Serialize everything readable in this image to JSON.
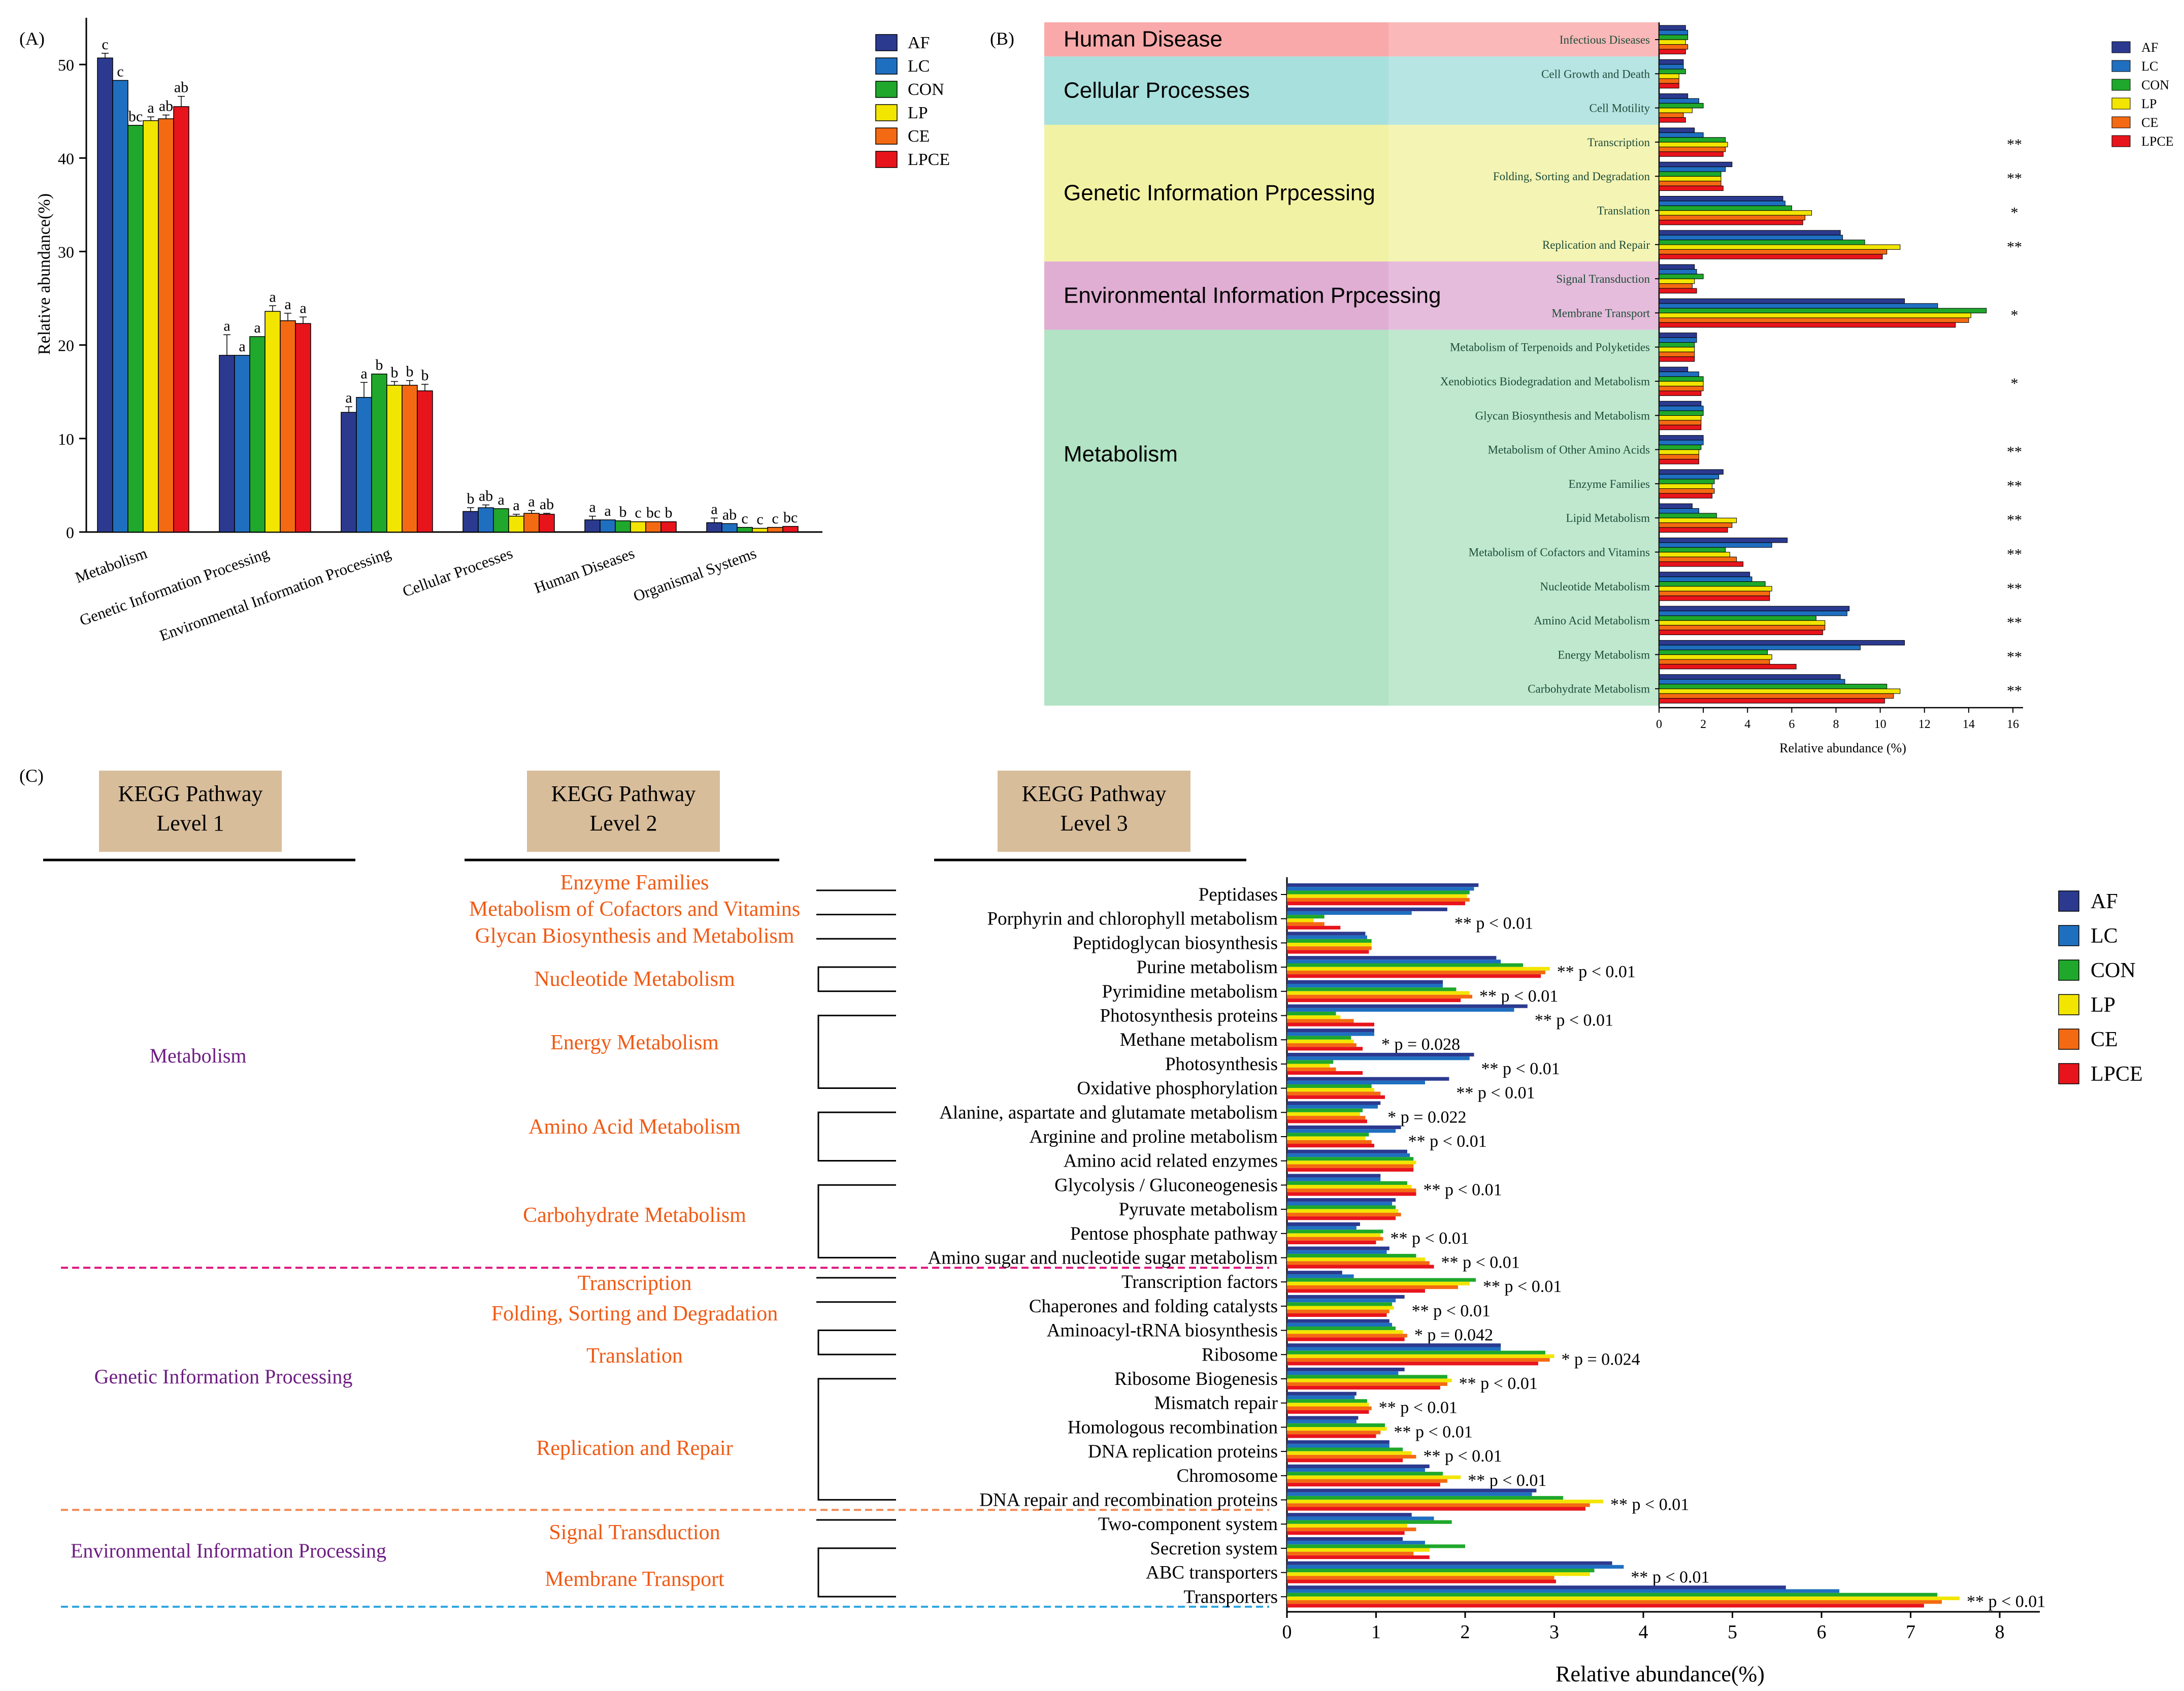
{
  "colors": {
    "AF": "#2b3a8f",
    "LC": "#1f6fc0",
    "CON": "#1fa82b",
    "LP": "#f2e500",
    "CE": "#f46a12",
    "LPCE": "#e8141c"
  },
  "legend": [
    "AF",
    "LC",
    "CON",
    "LP",
    "CE",
    "LPCE"
  ],
  "chart_data": [
    {
      "type": "bar",
      "panel": "(A)",
      "ylabel": "Relative abundance(%)",
      "ylim": [
        0,
        55
      ],
      "yticks": [
        0,
        10,
        20,
        30,
        40,
        50
      ],
      "categories": [
        "Metabolism",
        "Genetic Information Processing",
        "Environmental Information Processing",
        "Cellular Processes",
        "Human Diseases",
        "Organismal Systems"
      ],
      "series": [
        {
          "name": "AF",
          "values": [
            50.7,
            18.9,
            12.8,
            2.2,
            1.3,
            1.0
          ]
        },
        {
          "name": "LC",
          "values": [
            48.3,
            18.9,
            14.4,
            2.6,
            1.3,
            0.9
          ]
        },
        {
          "name": "CON",
          "values": [
            43.5,
            20.9,
            16.9,
            2.5,
            1.2,
            0.5
          ]
        },
        {
          "name": "LP",
          "values": [
            44.0,
            23.6,
            15.7,
            1.7,
            1.1,
            0.4
          ]
        },
        {
          "name": "CE",
          "values": [
            44.2,
            22.6,
            15.7,
            2.0,
            1.1,
            0.5
          ]
        },
        {
          "name": "LPCE",
          "values": [
            45.5,
            22.3,
            15.1,
            1.9,
            1.1,
            0.6
          ]
        }
      ],
      "errors": [
        [
          0.5,
          2.2,
          0.6,
          0.4,
          0.4,
          0.5
        ],
        [
          0,
          0,
          1.6,
          0.3,
          0,
          0
        ],
        [
          0,
          0,
          0,
          0,
          0,
          0
        ],
        [
          0.4,
          0.6,
          0.4,
          0.2,
          0,
          0
        ],
        [
          0.4,
          0.8,
          0.5,
          0.3,
          0,
          0
        ],
        [
          1.1,
          0.7,
          0.7,
          0.1,
          0,
          0
        ]
      ],
      "letters": [
        [
          "c",
          "c",
          "bc",
          "a",
          "ab",
          "ab"
        ],
        [
          "a",
          "a",
          "a",
          "a",
          "a",
          "a"
        ],
        [
          "a",
          "a",
          "b",
          "b",
          "b",
          "b"
        ],
        [
          "b",
          "ab",
          "a",
          "a",
          "a",
          "ab"
        ],
        [
          "a",
          "a",
          "b",
          "c",
          "bc",
          "b"
        ],
        [
          "a",
          "ab",
          "c",
          "c",
          "c",
          "bc"
        ]
      ]
    },
    {
      "type": "bar",
      "orientation": "horizontal",
      "panel": "(B)",
      "xlabel": "Relative abundance (%)",
      "xlim": [
        0,
        16
      ],
      "xticks": [
        0,
        2,
        4,
        6,
        8,
        10,
        12,
        14,
        16
      ],
      "groups": [
        {
          "name": "Human Disease",
          "color": "#f9a9a9",
          "rows": 1
        },
        {
          "name": "Cellular Processes",
          "color": "#a8e0dd",
          "rows": 2
        },
        {
          "name": "Genetic Information Prpcessing",
          "color": "#f2f2a4",
          "rows": 4
        },
        {
          "name": "Environmental Information Prpcessing",
          "color": "#e0aed3",
          "rows": 2
        },
        {
          "name": "Metabolism",
          "color": "#b1e3c4",
          "rows": 11
        }
      ],
      "categories": [
        "Infectious Diseases",
        "Cell Growth and Death",
        "Cell Motility",
        "Transcription",
        "Folding, Sorting and Degradation",
        "Translation",
        "Replication and Repair",
        "Signal Transduction",
        "Membrane Transport",
        "Metabolism of Terpenoids and Polyketides",
        "Xenobiotics Biodegradation and Metabolism",
        "Glycan Biosynthesis and Metabolism",
        "Metabolism of Other Amino Acids",
        "Enzyme Families",
        "Lipid Metabolism",
        "Metabolism of Cofactors and Vitamins",
        "Nucleotide Metabolism",
        "Amino Acid Metabolism",
        "Energy Metabolism",
        "Carbohydrate Metabolism"
      ],
      "series": [
        {
          "name": "AF",
          "values": [
            1.2,
            1.1,
            1.3,
            1.6,
            3.3,
            5.6,
            8.2,
            1.6,
            11.1,
            1.7,
            1.3,
            1.9,
            2.0,
            2.9,
            1.5,
            5.8,
            4.1,
            8.6,
            11.1,
            8.2
          ]
        },
        {
          "name": "LC",
          "values": [
            1.3,
            1.1,
            1.8,
            2.0,
            3.0,
            5.7,
            8.3,
            1.7,
            12.6,
            1.7,
            1.8,
            2.0,
            2.0,
            2.7,
            1.8,
            5.1,
            4.2,
            8.5,
            9.1,
            8.4
          ]
        },
        {
          "name": "CON",
          "values": [
            1.3,
            1.2,
            2.0,
            3.0,
            2.8,
            6.0,
            9.3,
            2.0,
            14.8,
            1.6,
            2.0,
            2.0,
            1.9,
            2.5,
            2.6,
            3.0,
            4.8,
            7.1,
            4.9,
            10.3
          ]
        },
        {
          "name": "LP",
          "values": [
            1.2,
            0.9,
            1.5,
            3.1,
            2.8,
            6.9,
            10.9,
            1.6,
            14.1,
            1.6,
            2.0,
            1.9,
            1.8,
            2.4,
            3.5,
            3.2,
            5.1,
            7.5,
            5.1,
            10.9
          ]
        },
        {
          "name": "CE",
          "values": [
            1.3,
            0.9,
            1.1,
            3.0,
            2.8,
            6.6,
            10.3,
            1.5,
            14.0,
            1.6,
            2.0,
            1.9,
            1.8,
            2.5,
            3.3,
            3.5,
            5.0,
            7.5,
            5.0,
            10.6
          ]
        },
        {
          "name": "LPCE",
          "values": [
            1.2,
            0.9,
            1.2,
            2.9,
            2.9,
            6.5,
            10.1,
            1.7,
            13.4,
            1.6,
            1.9,
            1.9,
            1.8,
            2.4,
            3.1,
            3.8,
            5.0,
            7.4,
            6.2,
            10.2
          ]
        }
      ],
      "significance": [
        "",
        "",
        "",
        "**",
        "**",
        "*",
        "**",
        "",
        "*",
        "",
        "*",
        "",
        "**",
        "**",
        "**",
        "**",
        "**",
        "**",
        "**",
        "**"
      ]
    },
    {
      "type": "bar",
      "orientation": "horizontal",
      "panel": "(C)",
      "xlabel": "Relative abundance(%)",
      "xlim": [
        0,
        8.4
      ],
      "xticks": [
        0,
        1,
        2,
        3,
        4,
        5,
        6,
        7,
        8
      ],
      "header_titles": [
        "KEGG Pathway\nLevel 1",
        "KEGG Pathway\nLevel 2",
        "KEGG Pathway\nLevel 3"
      ],
      "level1": [
        {
          "name": "Metabolism",
          "from": 0,
          "to": 15
        },
        {
          "name": "Genetic Information Processing",
          "from": 16,
          "to": 25
        },
        {
          "name": "Environmental Information Processing",
          "from": 26,
          "to": 29
        }
      ],
      "level2": [
        {
          "name": "Enzyme Families",
          "from": 0,
          "to": 0
        },
        {
          "name": "Metabolism of Cofactors and Vitamins",
          "from": 1,
          "to": 1
        },
        {
          "name": "Glycan Biosynthesis and Metabolism",
          "from": 2,
          "to": 2
        },
        {
          "name": "Nucleotide Metabolism",
          "from": 3,
          "to": 4
        },
        {
          "name": "Energy Metabolism",
          "from": 5,
          "to": 8
        },
        {
          "name": "Amino Acid Metabolism",
          "from": 9,
          "to": 11
        },
        {
          "name": "Carbohydrate Metabolism",
          "from": 12,
          "to": 15
        },
        {
          "name": "Transcription",
          "from": 16,
          "to": 16
        },
        {
          "name": "Folding, Sorting and Degradation",
          "from": 17,
          "to": 17
        },
        {
          "name": "Translation",
          "from": 18,
          "to": 19
        },
        {
          "name": "Replication and Repair",
          "from": 20,
          "to": 25
        },
        {
          "name": "Signal Transduction",
          "from": 26,
          "to": 26
        },
        {
          "name": "Membrane Transport",
          "from": 27,
          "to": 29
        }
      ],
      "categories": [
        "Peptidases",
        "Porphyrin and chlorophyll metabolism",
        "Peptidoglycan biosynthesis",
        "Purine metabolism",
        "Pyrimidine metabolism",
        "Photosynthesis proteins",
        "Methane metabolism",
        "Photosynthesis",
        "Oxidative phosphorylation",
        "Alanine, aspartate and glutamate metabolism",
        "Arginine and proline metabolism",
        "Amino acid related enzymes",
        "Glycolysis / Gluconeogenesis",
        "Pyruvate metabolism",
        "Pentose phosphate pathway",
        "Amino sugar and nucleotide sugar metabolism",
        "Transcription factors",
        "Chaperones and folding catalysts",
        "Aminoacyl-tRNA biosynthesis",
        "Ribosome",
        "Ribosome Biogenesis",
        "Mismatch repair",
        "Homologous recombination",
        "DNA replication proteins",
        "Chromosome",
        "DNA repair and recombination proteins",
        "Two-component system",
        "Secretion system",
        "ABC transporters",
        "Transporters"
      ],
      "series": [
        {
          "name": "AF",
          "values": [
            2.15,
            1.8,
            0.88,
            2.35,
            1.75,
            2.7,
            0.98,
            2.1,
            1.82,
            1.05,
            1.28,
            1.35,
            1.05,
            1.22,
            0.82,
            1.15,
            0.62,
            1.32,
            1.15,
            2.4,
            1.32,
            0.78,
            0.8,
            1.15,
            1.6,
            2.8,
            1.4,
            1.3,
            3.65,
            5.6
          ]
        },
        {
          "name": "LC",
          "values": [
            2.1,
            1.4,
            0.9,
            2.4,
            1.75,
            2.55,
            0.98,
            2.05,
            1.55,
            1.02,
            1.22,
            1.38,
            1.05,
            1.18,
            0.78,
            1.12,
            0.75,
            1.22,
            1.18,
            2.4,
            1.25,
            0.76,
            0.78,
            1.15,
            1.55,
            2.75,
            1.65,
            1.55,
            3.78,
            6.2
          ]
        },
        {
          "name": "CON",
          "values": [
            2.05,
            0.42,
            0.95,
            2.65,
            1.9,
            0.55,
            0.72,
            0.52,
            0.95,
            0.85,
            0.92,
            1.42,
            1.35,
            1.22,
            1.08,
            1.45,
            2.12,
            1.18,
            1.22,
            2.9,
            1.8,
            0.9,
            1.1,
            1.3,
            1.75,
            3.1,
            1.85,
            2.0,
            3.45,
            7.3
          ]
        },
        {
          "name": "LP",
          "values": [
            2.02,
            0.3,
            0.95,
            2.95,
            2.05,
            0.6,
            0.75,
            0.48,
            0.98,
            0.82,
            0.88,
            1.45,
            1.4,
            1.25,
            1.05,
            1.55,
            2.05,
            1.2,
            1.3,
            3.0,
            1.85,
            0.92,
            1.12,
            1.4,
            1.95,
            3.55,
            1.35,
            1.6,
            3.4,
            7.55
          ]
        },
        {
          "name": "CE",
          "values": [
            2.05,
            0.42,
            0.95,
            2.9,
            2.08,
            0.75,
            0.78,
            0.55,
            1.05,
            0.88,
            0.95,
            1.42,
            1.45,
            1.28,
            1.08,
            1.6,
            1.92,
            1.15,
            1.35,
            2.95,
            1.8,
            0.95,
            1.05,
            1.45,
            1.8,
            3.4,
            1.45,
            1.42,
            3.0,
            7.35
          ]
        },
        {
          "name": "LPCE",
          "values": [
            2.0,
            0.6,
            0.92,
            2.85,
            1.95,
            0.98,
            0.85,
            0.85,
            1.1,
            0.9,
            0.98,
            1.42,
            1.45,
            1.22,
            1.0,
            1.65,
            1.55,
            1.12,
            1.32,
            2.82,
            1.72,
            0.92,
            1.0,
            1.3,
            1.72,
            3.35,
            1.32,
            1.6,
            3.02,
            7.15
          ]
        }
      ],
      "annotations": [
        "",
        "** p < 0.01",
        "",
        "** p < 0.01",
        "** p < 0.01",
        "** p < 0.01",
        "* p = 0.028",
        "** p < 0.01",
        "** p < 0.01",
        "* p = 0.022",
        "** p < 0.01",
        "",
        "** p < 0.01",
        "",
        "** p < 0.01",
        "** p < 0.01",
        "** p < 0.01",
        "** p < 0.01",
        "* p = 0.042",
        "* p = 0.024",
        "** p < 0.01",
        "** p < 0.01",
        "** p < 0.01",
        "** p < 0.01",
        "** p < 0.01",
        "** p < 0.01",
        "",
        "",
        "** p < 0.01",
        "** p < 0.01"
      ]
    }
  ]
}
